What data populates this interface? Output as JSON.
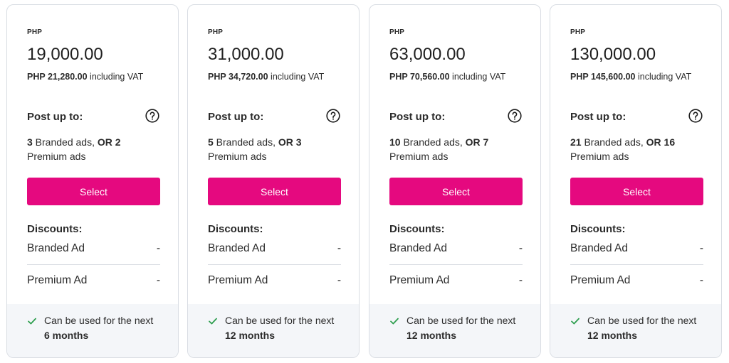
{
  "colors": {
    "accent": "#e5097f",
    "check": "#2e9e4f",
    "footer_bg": "#f4f6f9",
    "border": "#d9dde3"
  },
  "plans": [
    {
      "currency": "PHP",
      "price": "19,000.00",
      "vat_amount": "PHP 21,280.00",
      "vat_suffix": " including VAT",
      "post_title": "Post up to:",
      "branded_count": "3",
      "branded_text": " Branded ads, ",
      "or_text": "OR 2",
      "premium_text": "Premium ads",
      "select_label": "Select",
      "discounts_title": "Discounts:",
      "discounts": [
        {
          "label": "Branded Ad",
          "value": "-"
        },
        {
          "label": "Premium Ad",
          "value": "-"
        }
      ],
      "validity_text": "Can be used for the next",
      "validity_duration": "6 months"
    },
    {
      "currency": "PHP",
      "price": "31,000.00",
      "vat_amount": "PHP 34,720.00",
      "vat_suffix": " including VAT",
      "post_title": "Post up to:",
      "branded_count": "5",
      "branded_text": " Branded ads, ",
      "or_text": "OR 3",
      "premium_text": "Premium ads",
      "select_label": "Select",
      "discounts_title": "Discounts:",
      "discounts": [
        {
          "label": "Branded Ad",
          "value": "-"
        },
        {
          "label": "Premium Ad",
          "value": "-"
        }
      ],
      "validity_text": "Can be used for the next",
      "validity_duration": "12 months"
    },
    {
      "currency": "PHP",
      "price": "63,000.00",
      "vat_amount": "PHP 70,560.00",
      "vat_suffix": " including VAT",
      "post_title": "Post up to:",
      "branded_count": "10",
      "branded_text": " Branded ads, ",
      "or_text": "OR 7",
      "premium_text": "Premium ads",
      "select_label": "Select",
      "discounts_title": "Discounts:",
      "discounts": [
        {
          "label": "Branded Ad",
          "value": "-"
        },
        {
          "label": "Premium Ad",
          "value": "-"
        }
      ],
      "validity_text": "Can be used for the next",
      "validity_duration": "12 months"
    },
    {
      "currency": "PHP",
      "price": "130,000.00",
      "vat_amount": "PHP 145,600.00",
      "vat_suffix": " including VAT",
      "post_title": "Post up to:",
      "branded_count": "21",
      "branded_text": " Branded ads, ",
      "or_text": "OR 16",
      "premium_text": "Premium ads",
      "select_label": "Select",
      "discounts_title": "Discounts:",
      "discounts": [
        {
          "label": "Branded Ad",
          "value": "-"
        },
        {
          "label": "Premium Ad",
          "value": "-"
        }
      ],
      "validity_text": "Can be used for the next",
      "validity_duration": "12 months"
    }
  ]
}
